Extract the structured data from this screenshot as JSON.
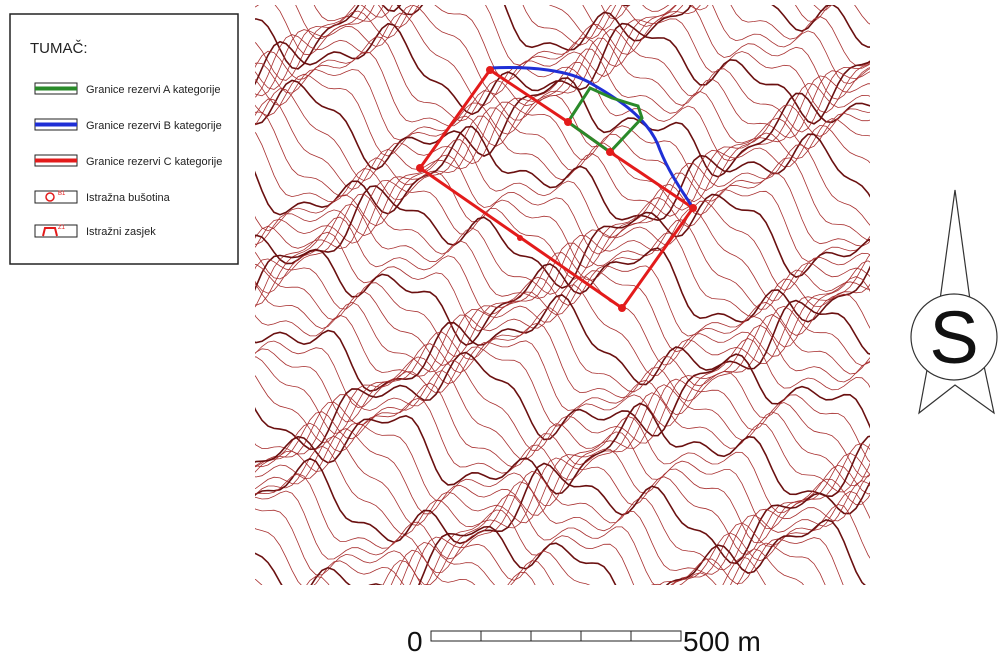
{
  "legend": {
    "title": "TUMAČ:",
    "items": [
      {
        "label": "Granice rezervi A kategorije"
      },
      {
        "label": "Granice rezervi B kategorije"
      },
      {
        "label": "Granice rezervi C kategorije"
      },
      {
        "label": "Istražna bušotina",
        "icon_label": "B1"
      },
      {
        "label": "Istražni zasjek",
        "icon_label": "Z1"
      }
    ]
  },
  "compass": {
    "letter": "S"
  },
  "scale": {
    "start": "0",
    "end": "500 m"
  }
}
